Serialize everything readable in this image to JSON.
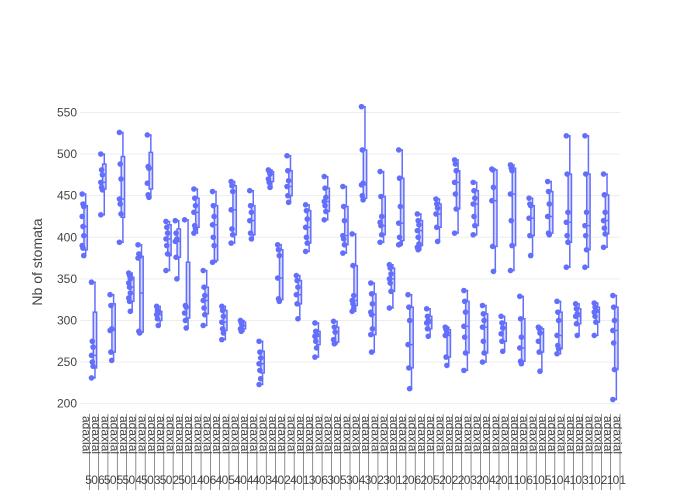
{
  "chart_data": {
    "type": "box",
    "title": "",
    "ylabel": "Nb of stomata",
    "xlabel": "",
    "ylim": [
      190,
      565
    ],
    "yticks": [
      200,
      250,
      300,
      350,
      400,
      450,
      500,
      550
    ],
    "grid": true,
    "legend": "none",
    "colors": {
      "box": "#636efa",
      "fill": "#c3c7fd",
      "grid": "#ebedf0",
      "text": "#444444"
    },
    "categories": [
      {
        "l1": "adaxial",
        "l2": "5"
      },
      {
        "l1": "adaxial",
        "l2": "06"
      },
      {
        "l1": "adaxial",
        "l2": "5"
      },
      {
        "l1": "adaxial",
        "l2": "05"
      },
      {
        "l1": "adaxial",
        "l2": "5"
      },
      {
        "l1": "adaxial",
        "l2": "04"
      },
      {
        "l1": "adaxial",
        "l2": "5"
      },
      {
        "l1": "adaxial",
        "l2": "03"
      },
      {
        "l1": "adaxial",
        "l2": "5"
      },
      {
        "l1": "adaxial",
        "l2": "02"
      },
      {
        "l1": "adaxial",
        "l2": "5"
      },
      {
        "l1": "adaxial",
        "l2": "01"
      },
      {
        "l1": "adaxial",
        "l2": "4"
      },
      {
        "l1": "adaxial",
        "l2": "06"
      },
      {
        "l1": "adaxial",
        "l2": "4"
      },
      {
        "l1": "adaxial",
        "l2": "05"
      },
      {
        "l1": "adaxial",
        "l2": "4"
      },
      {
        "l1": "adaxial",
        "l2": "04"
      },
      {
        "l1": "adaxial",
        "l2": "4"
      },
      {
        "l1": "adaxial",
        "l2": "03"
      },
      {
        "l1": "adaxial",
        "l2": "4"
      },
      {
        "l1": "adaxial",
        "l2": "02"
      },
      {
        "l1": "adaxial",
        "l2": "4"
      },
      {
        "l1": "adaxial",
        "l2": "01"
      },
      {
        "l1": "adaxial",
        "l2": "3"
      },
      {
        "l1": "adaxial",
        "l2": "06"
      },
      {
        "l1": "adaxial",
        "l2": "3"
      },
      {
        "l1": "adaxial",
        "l2": "05"
      },
      {
        "l1": "adaxial",
        "l2": "3"
      },
      {
        "l1": "adaxial",
        "l2": "04"
      },
      {
        "l1": "adaxial",
        "l2": "3"
      },
      {
        "l1": "adaxial",
        "l2": "02"
      },
      {
        "l1": "adaxial",
        "l2": "3"
      },
      {
        "l1": "adaxial",
        "l2": "01"
      },
      {
        "l1": "adaxial",
        "l2": "2"
      },
      {
        "l1": "adaxial",
        "l2": "06"
      },
      {
        "l1": "adaxial",
        "l2": "2"
      },
      {
        "l1": "adaxial",
        "l2": "05"
      },
      {
        "l1": "adaxial",
        "l2": "2"
      },
      {
        "l1": "adaxial",
        "l2": "02"
      },
      {
        "l1": "adaxial",
        "l2": "2"
      },
      {
        "l1": "adaxial",
        "l2": "03"
      },
      {
        "l1": "adaxial",
        "l2": "2"
      },
      {
        "l1": "adaxial",
        "l2": "04"
      },
      {
        "l1": "adaxial",
        "l2": "2"
      },
      {
        "l1": "adaxial",
        "l2": "01"
      },
      {
        "l1": "adaxial",
        "l2": "1"
      },
      {
        "l1": "adaxial",
        "l2": "06"
      },
      {
        "l1": "adaxial",
        "l2": "1"
      },
      {
        "l1": "adaxial",
        "l2": "05"
      },
      {
        "l1": "adaxial",
        "l2": "1"
      },
      {
        "l1": "adaxial",
        "l2": "04"
      },
      {
        "l1": "adaxial",
        "l2": "1"
      },
      {
        "l1": "adaxial",
        "l2": "03"
      },
      {
        "l1": "adaxial",
        "l2": "1"
      },
      {
        "l1": "adaxial",
        "l2": "02"
      },
      {
        "l1": "adaxial",
        "l2": "1"
      },
      {
        "l1": "adaxial",
        "l2": "01"
      }
    ],
    "boxes": [
      {
        "min": 378,
        "q1": 385,
        "median": 413,
        "q3": 438,
        "max": 452,
        "points": [
          452,
          440,
          437,
          425,
          413,
          402,
          390,
          387,
          378
        ]
      },
      {
        "min": 231,
        "q1": 243,
        "median": 258,
        "q3": 310,
        "max": 346,
        "points": [
          346,
          275,
          268,
          258,
          250,
          245,
          231
        ]
      },
      {
        "min": 427,
        "q1": 458,
        "median": 466,
        "q3": 488,
        "max": 500,
        "points": [
          500,
          481,
          475,
          466,
          460,
          457,
          427
        ]
      },
      {
        "min": 252,
        "q1": 262,
        "median": 288,
        "q3": 320,
        "max": 331,
        "points": [
          331,
          318,
          290,
          288,
          262,
          252
        ]
      },
      {
        "min": 394,
        "q1": 424,
        "median": 446,
        "q3": 497,
        "max": 526,
        "points": [
          526,
          488,
          470,
          446,
          440,
          428,
          394
        ]
      },
      {
        "min": 311,
        "q1": 323,
        "median": 340,
        "q3": 352,
        "max": 357,
        "points": [
          357,
          354,
          350,
          345,
          340,
          333,
          327,
          323,
          311
        ]
      },
      {
        "min": 285,
        "q1": 286,
        "median": 333,
        "q3": 377,
        "max": 391,
        "points": [
          391,
          380,
          377,
          375,
          287,
          285
        ]
      },
      {
        "min": 448,
        "q1": 458,
        "median": 483,
        "q3": 502,
        "max": 523,
        "points": [
          523,
          485,
          483,
          465,
          451,
          448
        ]
      },
      {
        "min": 294,
        "q1": 300,
        "median": 307,
        "q3": 311,
        "max": 317,
        "points": [
          317,
          312,
          310,
          307,
          302,
          294
        ]
      },
      {
        "min": 360,
        "q1": 378,
        "median": 398,
        "q3": 415,
        "max": 419,
        "points": [
          419,
          412,
          405,
          398,
          390,
          380,
          360
        ]
      },
      {
        "min": 350,
        "q1": 376,
        "median": 395,
        "q3": 410,
        "max": 420,
        "points": [
          420,
          405,
          398,
          395,
          376,
          350
        ]
      },
      {
        "min": 291,
        "q1": 303,
        "median": 316,
        "q3": 370,
        "max": 421,
        "points": [
          421,
          318,
          316,
          309,
          300,
          291
        ]
      },
      {
        "min": 405,
        "q1": 412,
        "median": 430,
        "q3": 447,
        "max": 458,
        "points": [
          458,
          447,
          438,
          430,
          414,
          410,
          405
        ]
      },
      {
        "min": 294,
        "q1": 308,
        "median": 324,
        "q3": 340,
        "max": 360,
        "points": [
          360,
          340,
          330,
          324,
          315,
          307,
          294
        ]
      },
      {
        "min": 370,
        "q1": 372,
        "median": 415,
        "q3": 438,
        "max": 455,
        "points": [
          455,
          438,
          425,
          415,
          400,
          390,
          370
        ]
      },
      {
        "min": 277,
        "q1": 288,
        "median": 298,
        "q3": 312,
        "max": 317,
        "points": [
          317,
          312,
          305,
          298,
          290,
          285,
          277
        ]
      },
      {
        "min": 393,
        "q1": 403,
        "median": 433,
        "q3": 462,
        "max": 467,
        "points": [
          467,
          462,
          455,
          433,
          410,
          403,
          393
        ]
      },
      {
        "min": 287,
        "q1": 290,
        "median": 294,
        "q3": 298,
        "max": 300,
        "points": [
          300,
          297,
          294,
          290,
          287
        ]
      },
      {
        "min": 397,
        "q1": 403,
        "median": 420,
        "q3": 438,
        "max": 456,
        "points": [
          456,
          438,
          430,
          420,
          405,
          398
        ]
      },
      {
        "min": 223,
        "q1": 237,
        "median": 248,
        "q3": 263,
        "max": 275,
        "points": [
          275,
          262,
          255,
          248,
          240,
          230,
          223
        ]
      },
      {
        "min": 460,
        "q1": 467,
        "median": 476,
        "q3": 479,
        "max": 481,
        "points": [
          481,
          479,
          476,
          470,
          466,
          460
        ]
      },
      {
        "min": 323,
        "q1": 325,
        "median": 351,
        "q3": 385,
        "max": 391,
        "points": [
          391,
          385,
          378,
          351,
          326,
          323
        ]
      },
      {
        "min": 442,
        "q1": 450,
        "median": 461,
        "q3": 480,
        "max": 498,
        "points": [
          498,
          480,
          468,
          461,
          450,
          442
        ]
      },
      {
        "min": 302,
        "q1": 320,
        "median": 331,
        "q3": 348,
        "max": 354,
        "points": [
          354,
          348,
          340,
          331,
          320,
          302
        ]
      },
      {
        "min": 383,
        "q1": 393,
        "median": 412,
        "q3": 432,
        "max": 439,
        "points": [
          439,
          432,
          422,
          412,
          400,
          393,
          383
        ]
      },
      {
        "min": 256,
        "q1": 271,
        "median": 281,
        "q3": 287,
        "max": 297,
        "points": [
          297,
          287,
          283,
          281,
          275,
          267,
          256
        ]
      },
      {
        "min": 421,
        "q1": 431,
        "median": 443,
        "q3": 459,
        "max": 473,
        "points": [
          473,
          459,
          448,
          443,
          438,
          431,
          421
        ]
      },
      {
        "min": 272,
        "q1": 274,
        "median": 286,
        "q3": 292,
        "max": 299,
        "points": [
          299,
          292,
          286,
          277,
          272
        ]
      },
      {
        "min": 381,
        "q1": 391,
        "median": 402,
        "q3": 437,
        "max": 461,
        "points": [
          461,
          437,
          420,
          402,
          398,
          391,
          381
        ]
      },
      {
        "min": 311,
        "q1": 318,
        "median": 324,
        "q3": 366,
        "max": 404,
        "points": [
          404,
          366,
          330,
          324,
          320,
          315,
          311
        ]
      },
      {
        "min": 445,
        "q1": 447,
        "median": 463,
        "q3": 505,
        "max": 557,
        "points": [
          557,
          505,
          465,
          463,
          450,
          445
        ]
      },
      {
        "min": 262,
        "q1": 283,
        "median": 307,
        "q3": 332,
        "max": 345,
        "points": [
          345,
          332,
          320,
          310,
          307,
          290,
          283,
          262
        ]
      },
      {
        "min": 394,
        "q1": 403,
        "median": 414,
        "q3": 449,
        "max": 479,
        "points": [
          479,
          449,
          425,
          418,
          414,
          403,
          394
        ]
      },
      {
        "min": 315,
        "q1": 335,
        "median": 350,
        "q3": 363,
        "max": 367,
        "points": [
          367,
          363,
          356,
          350,
          345,
          335,
          315
        ]
      },
      {
        "min": 391,
        "q1": 396,
        "median": 417,
        "q3": 471,
        "max": 505,
        "points": [
          505,
          471,
          437,
          417,
          400,
          392,
          391
        ]
      },
      {
        "min": 218,
        "q1": 243,
        "median": 271,
        "q3": 316,
        "max": 331,
        "points": [
          331,
          316,
          300,
          271,
          243,
          218
        ]
      },
      {
        "min": 385,
        "q1": 390,
        "median": 408,
        "q3": 420,
        "max": 428,
        "points": [
          428,
          420,
          415,
          408,
          400,
          392,
          388,
          385
        ]
      },
      {
        "min": 281,
        "q1": 290,
        "median": 297,
        "q3": 305,
        "max": 314,
        "points": [
          314,
          305,
          300,
          297,
          290,
          281
        ]
      },
      {
        "min": 395,
        "q1": 412,
        "median": 428,
        "q3": 440,
        "max": 446,
        "points": [
          446,
          440,
          435,
          428,
          412,
          395
        ]
      },
      {
        "min": 246,
        "q1": 256,
        "median": 282,
        "q3": 289,
        "max": 292,
        "points": [
          292,
          289,
          285,
          282,
          256,
          246
        ]
      },
      {
        "min": 405,
        "q1": 434,
        "median": 466,
        "q3": 480,
        "max": 493,
        "points": [
          493,
          488,
          480,
          466,
          452,
          434,
          405
        ]
      },
      {
        "min": 240,
        "q1": 261,
        "median": 293,
        "q3": 323,
        "max": 336,
        "points": [
          336,
          323,
          310,
          293,
          280,
          261,
          240
        ]
      },
      {
        "min": 403,
        "q1": 414,
        "median": 440,
        "q3": 456,
        "max": 466,
        "points": [
          466,
          456,
          447,
          440,
          425,
          414,
          403
        ]
      },
      {
        "min": 250,
        "q1": 261,
        "median": 292,
        "q3": 308,
        "max": 318,
        "points": [
          318,
          308,
          300,
          292,
          275,
          261,
          250
        ]
      },
      {
        "min": 359,
        "q1": 389,
        "median": 444,
        "q3": 481,
        "max": 482,
        "points": [
          482,
          481,
          460,
          444,
          389,
          359
        ]
      },
      {
        "min": 263,
        "q1": 275,
        "median": 291,
        "q3": 297,
        "max": 305,
        "points": [
          305,
          297,
          291,
          284,
          275,
          263
        ]
      },
      {
        "min": 360,
        "q1": 390,
        "median": 452,
        "q3": 483,
        "max": 487,
        "points": [
          487,
          483,
          480,
          452,
          420,
          390,
          360
        ]
      },
      {
        "min": 248,
        "q1": 251,
        "median": 267,
        "q3": 302,
        "max": 329,
        "points": [
          329,
          302,
          280,
          267,
          251,
          248
        ]
      },
      {
        "min": 378,
        "q1": 402,
        "median": 423,
        "q3": 438,
        "max": 447,
        "points": [
          447,
          440,
          438,
          423,
          402,
          378
        ]
      },
      {
        "min": 239,
        "q1": 262,
        "median": 285,
        "q3": 290,
        "max": 292,
        "points": [
          292,
          290,
          285,
          275,
          262,
          239
        ]
      },
      {
        "min": 403,
        "q1": 405,
        "median": 425,
        "q3": 455,
        "max": 467,
        "points": [
          467,
          455,
          440,
          425,
          405,
          403
        ]
      },
      {
        "min": 260,
        "q1": 266,
        "median": 282,
        "q3": 310,
        "max": 323,
        "points": [
          323,
          310,
          300,
          282,
          270,
          266,
          260
        ]
      },
      {
        "min": 364,
        "q1": 394,
        "median": 418,
        "q3": 476,
        "max": 522,
        "points": [
          522,
          476,
          430,
          418,
          402,
          394,
          364
        ]
      },
      {
        "min": 282,
        "q1": 296,
        "median": 305,
        "q3": 314,
        "max": 320,
        "points": [
          320,
          314,
          308,
          305,
          296,
          282
        ]
      },
      {
        "min": 364,
        "q1": 385,
        "median": 414,
        "q3": 476,
        "max": 522,
        "points": [
          522,
          476,
          430,
          414,
          402,
          385,
          364
        ]
      },
      {
        "min": 282,
        "q1": 298,
        "median": 310,
        "q3": 316,
        "max": 321,
        "points": [
          321,
          316,
          312,
          310,
          305,
          298,
          282
        ]
      },
      {
        "min": 388,
        "q1": 404,
        "median": 420,
        "q3": 451,
        "max": 476,
        "points": [
          476,
          451,
          430,
          420,
          411,
          404,
          388
        ]
      },
      {
        "min": 205,
        "q1": 241,
        "median": 288,
        "q3": 316,
        "max": 330,
        "points": [
          330,
          316,
          300,
          288,
          273,
          241,
          205
        ]
      }
    ]
  }
}
